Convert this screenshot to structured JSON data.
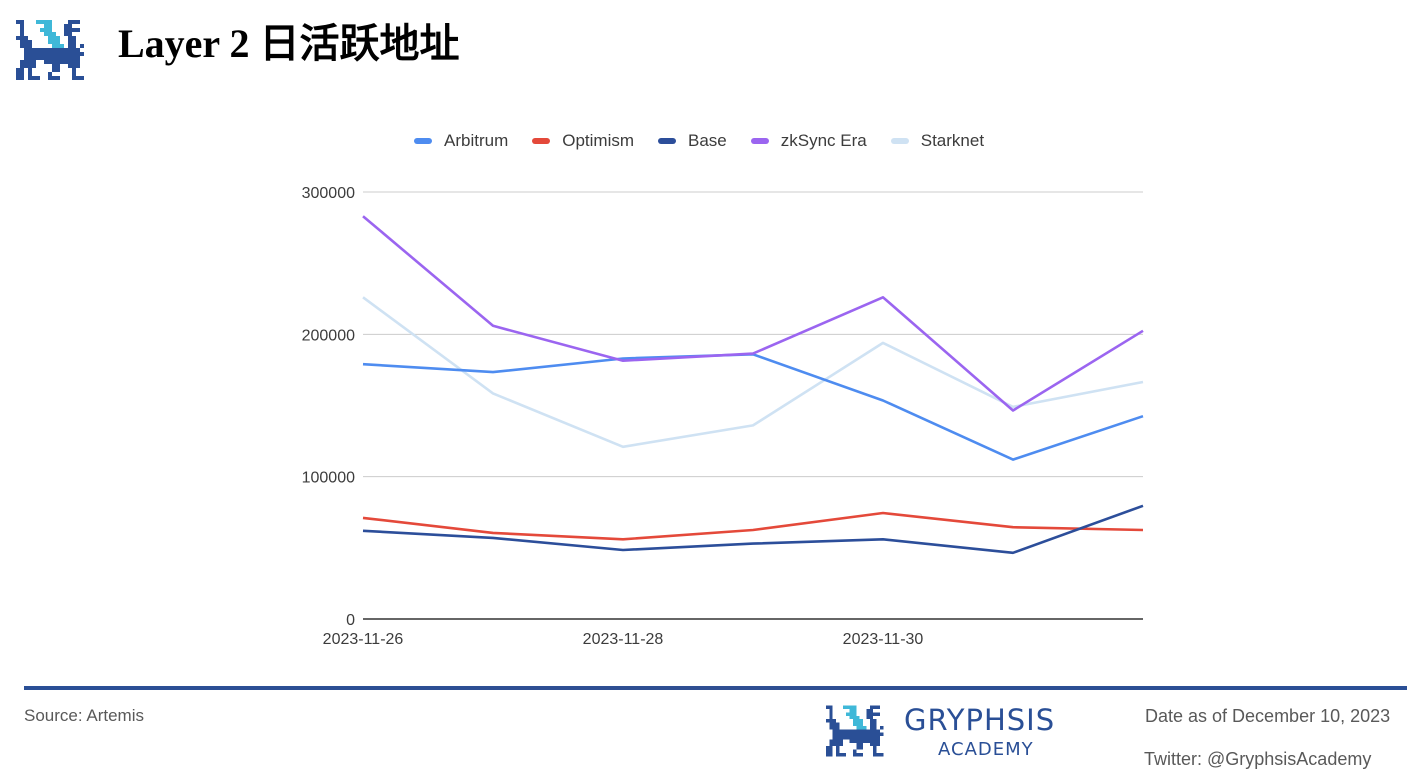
{
  "header": {
    "title_latin": "Layer 2 ",
    "title_cjk": "日活跃地址",
    "logo_icon": "gryphon-pixel-logo"
  },
  "colors": {
    "brand": "#2a4f96",
    "brand_accent": "#3fb8d8",
    "arbitrum": "#4e8cf0",
    "optimism": "#e4493a",
    "base": "#2c4e9a",
    "zksync": "#9b65f0",
    "starknet": "#cfe2f3",
    "grid": "#cccccc",
    "axis": "#333333"
  },
  "chart_data": {
    "type": "line",
    "title": "Layer 2 日活跃地址",
    "xlabel": "",
    "ylabel": "",
    "x": [
      "2023-11-26",
      "2023-11-27",
      "2023-11-28",
      "2023-11-29",
      "2023-11-30",
      "2023-12-01",
      "2023-12-02"
    ],
    "x_tick_labels": [
      "2023-11-26",
      "2023-11-28",
      "2023-11-30"
    ],
    "y_ticks": [
      0,
      100000,
      200000,
      300000
    ],
    "ylim": [
      0,
      300000
    ],
    "grid": true,
    "legend_position": "top",
    "series": [
      {
        "name": "Arbitrum",
        "color": "#4e8cf0",
        "values": [
          179000,
          173500,
          183000,
          186000,
          153500,
          112000,
          142500
        ]
      },
      {
        "name": "Optimism",
        "color": "#e4493a",
        "values": [
          71000,
          60500,
          56000,
          62500,
          74500,
          64500,
          62500
        ]
      },
      {
        "name": "Base",
        "color": "#2c4e9a",
        "values": [
          62000,
          57000,
          48500,
          53000,
          56000,
          46500,
          79500
        ]
      },
      {
        "name": "zkSync Era",
        "color": "#9b65f0",
        "values": [
          283000,
          206000,
          181500,
          186500,
          226000,
          146500,
          202500
        ]
      },
      {
        "name": "Starknet",
        "color": "#cfe2f3",
        "values": [
          226000,
          158500,
          121000,
          136000,
          194000,
          149000,
          166500
        ]
      }
    ]
  },
  "legend": {
    "items": [
      {
        "label": "Arbitrum",
        "color": "#4e8cf0"
      },
      {
        "label": "Optimism",
        "color": "#e4493a"
      },
      {
        "label": "Base",
        "color": "#2c4e9a"
      },
      {
        "label": "zkSync Era",
        "color": "#9b65f0"
      },
      {
        "label": "Starknet",
        "color": "#cfe2f3"
      }
    ]
  },
  "axis": {
    "y_labels": [
      "300000",
      "200000",
      "100000",
      "0"
    ],
    "x_labels": [
      "2023-11-26",
      "2023-11-28",
      "2023-11-30"
    ]
  },
  "footer": {
    "source": "Source: Artemis",
    "brand_name": "GRYPHSIS",
    "brand_sub": "ACADEMY",
    "date_note": "Date as of December 10, 2023",
    "twitter": "Twitter: @GryphsisAcademy"
  }
}
